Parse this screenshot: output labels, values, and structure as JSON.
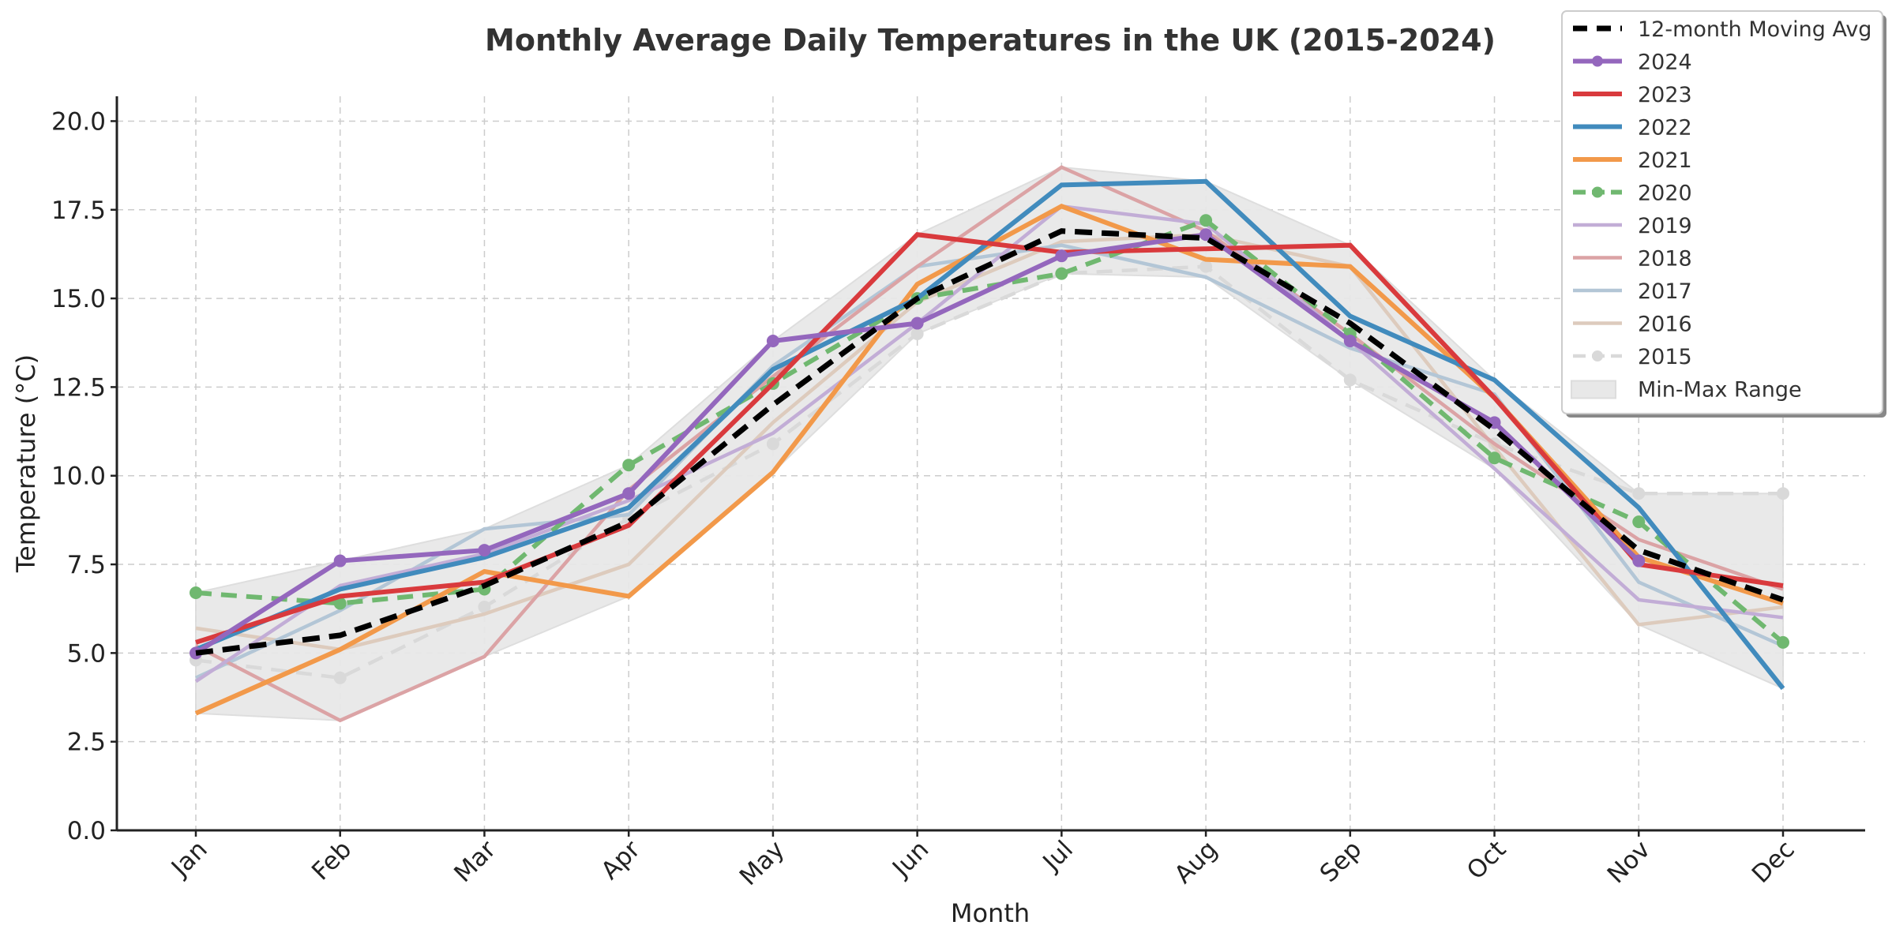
{
  "chart_data": {
    "type": "line",
    "title": "Monthly Average Daily Temperatures in the UK (2015-2024)",
    "xlabel": "Month",
    "ylabel": "Temperature (°C)",
    "ylim": [
      0,
      20.7
    ],
    "yticks": [
      "0.0",
      "2.5",
      "5.0",
      "7.5",
      "10.0",
      "12.5",
      "15.0",
      "17.5",
      "20.0"
    ],
    "ytick_values": [
      0,
      2.5,
      5,
      7.5,
      10,
      12.5,
      15,
      17.5,
      20
    ],
    "categories": [
      "Jan",
      "Feb",
      "Mar",
      "Apr",
      "May",
      "Jun",
      "Jul",
      "Aug",
      "Sep",
      "Oct",
      "Nov",
      "Dec"
    ],
    "grid": true,
    "legend_position": "top-right",
    "series": [
      {
        "name": "2015",
        "color": "#d9d9d9",
        "dashed": true,
        "markers": true,
        "opacity": 1,
        "width": "thin",
        "values": [
          4.8,
          4.3,
          6.3,
          8.8,
          10.9,
          14.0,
          15.7,
          15.9,
          12.7,
          10.9,
          9.5,
          9.5
        ]
      },
      {
        "name": "2016",
        "color": "#ddcbbd",
        "dashed": false,
        "markers": false,
        "width": "thin",
        "values": [
          5.7,
          5.1,
          6.1,
          7.5,
          11.5,
          14.9,
          16.6,
          16.8,
          15.9,
          10.8,
          5.8,
          6.3
        ]
      },
      {
        "name": "2017",
        "color": "#b3c6d6",
        "dashed": false,
        "markers": false,
        "width": "thin",
        "values": [
          4.3,
          6.2,
          8.5,
          8.9,
          13.1,
          15.9,
          16.5,
          15.6,
          13.6,
          12.3,
          7.0,
          5.2
        ]
      },
      {
        "name": "2018",
        "color": "#dba3a5",
        "dashed": false,
        "markers": false,
        "width": "thin",
        "values": [
          5.2,
          3.1,
          4.9,
          9.6,
          12.8,
          15.9,
          18.7,
          16.9,
          14.0,
          10.9,
          8.2,
          6.8
        ]
      },
      {
        "name": "2019",
        "color": "#c2add6",
        "dashed": false,
        "markers": false,
        "width": "thin",
        "values": [
          4.2,
          6.9,
          7.8,
          9.3,
          11.2,
          14.3,
          17.6,
          17.1,
          13.8,
          10.2,
          6.5,
          6.0
        ]
      },
      {
        "name": "2020",
        "color": "#70b870",
        "dashed": true,
        "markers": true,
        "width": "thick",
        "values": [
          6.7,
          6.4,
          6.8,
          10.3,
          12.6,
          15.0,
          15.7,
          17.2,
          14.0,
          10.5,
          8.7,
          5.3
        ]
      },
      {
        "name": "2021",
        "color": "#f2994a",
        "dashed": false,
        "markers": false,
        "width": "thick",
        "values": [
          3.3,
          5.1,
          7.3,
          6.6,
          10.1,
          15.4,
          17.6,
          16.1,
          15.9,
          12.2,
          7.7,
          6.4
        ]
      },
      {
        "name": "2022",
        "color": "#418bbd",
        "dashed": false,
        "markers": false,
        "width": "thick",
        "values": [
          5.1,
          6.8,
          7.7,
          9.1,
          13.0,
          15.0,
          18.2,
          18.3,
          14.5,
          12.7,
          9.1,
          4.0
        ]
      },
      {
        "name": "2023",
        "color": "#d93a3d",
        "dashed": false,
        "markers": false,
        "width": "thick",
        "values": [
          5.3,
          6.6,
          7.0,
          8.6,
          12.6,
          16.8,
          16.3,
          16.4,
          16.5,
          12.2,
          7.5,
          6.9
        ]
      },
      {
        "name": "2024",
        "color": "#9467bd",
        "dashed": false,
        "markers": true,
        "width": "thick",
        "values": [
          5.0,
          7.6,
          7.9,
          9.5,
          13.8,
          14.3,
          16.2,
          16.8,
          13.8,
          11.5,
          7.6,
          null
        ]
      },
      {
        "name": "12-month Moving Avg",
        "color": "#000000",
        "dashed": true,
        "markers": false,
        "width": "thick",
        "values": [
          5.0,
          5.5,
          6.9,
          8.7,
          12.0,
          15.0,
          16.9,
          16.7,
          14.3,
          11.3,
          7.9,
          6.5
        ]
      }
    ],
    "range_band": {
      "name": "Min-Max Range",
      "color": "#e8e8e8"
    },
    "legend_order": [
      "12-month Moving Avg",
      "2024",
      "2023",
      "2022",
      "2021",
      "2020",
      "2019",
      "2018",
      "2017",
      "2016",
      "2015",
      "Min-Max Range"
    ]
  }
}
